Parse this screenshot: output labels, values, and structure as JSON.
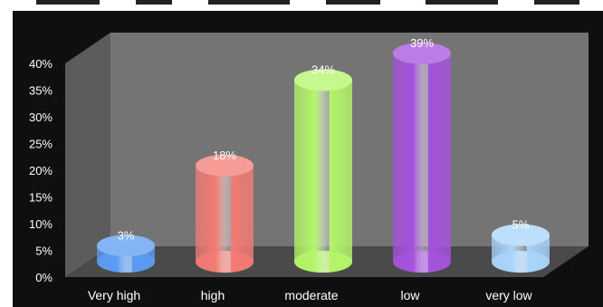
{
  "chart_data": {
    "type": "bar",
    "title": "",
    "xlabel": "",
    "ylabel": "",
    "categories": [
      "Very high",
      "high",
      "moderate",
      "low",
      "very low"
    ],
    "values": [
      3,
      18,
      34,
      39,
      5
    ],
    "data_labels": [
      "3%",
      "18%",
      "34%",
      "39%",
      "5%"
    ],
    "ylim": [
      0,
      40
    ],
    "y_ticks": [
      "0%",
      "5%",
      "10%",
      "15%",
      "20%",
      "25%",
      "30%",
      "35%",
      "40%"
    ],
    "grid": false,
    "legend": "none",
    "style": "3d-cylinder",
    "colors": [
      "#5b9bf2",
      "#f27b74",
      "#b4f56a",
      "#a552dc",
      "#a9d4fb"
    ],
    "background_color": "#111111",
    "wall_color": "#747474",
    "floor_color": "#4a4a4a"
  }
}
